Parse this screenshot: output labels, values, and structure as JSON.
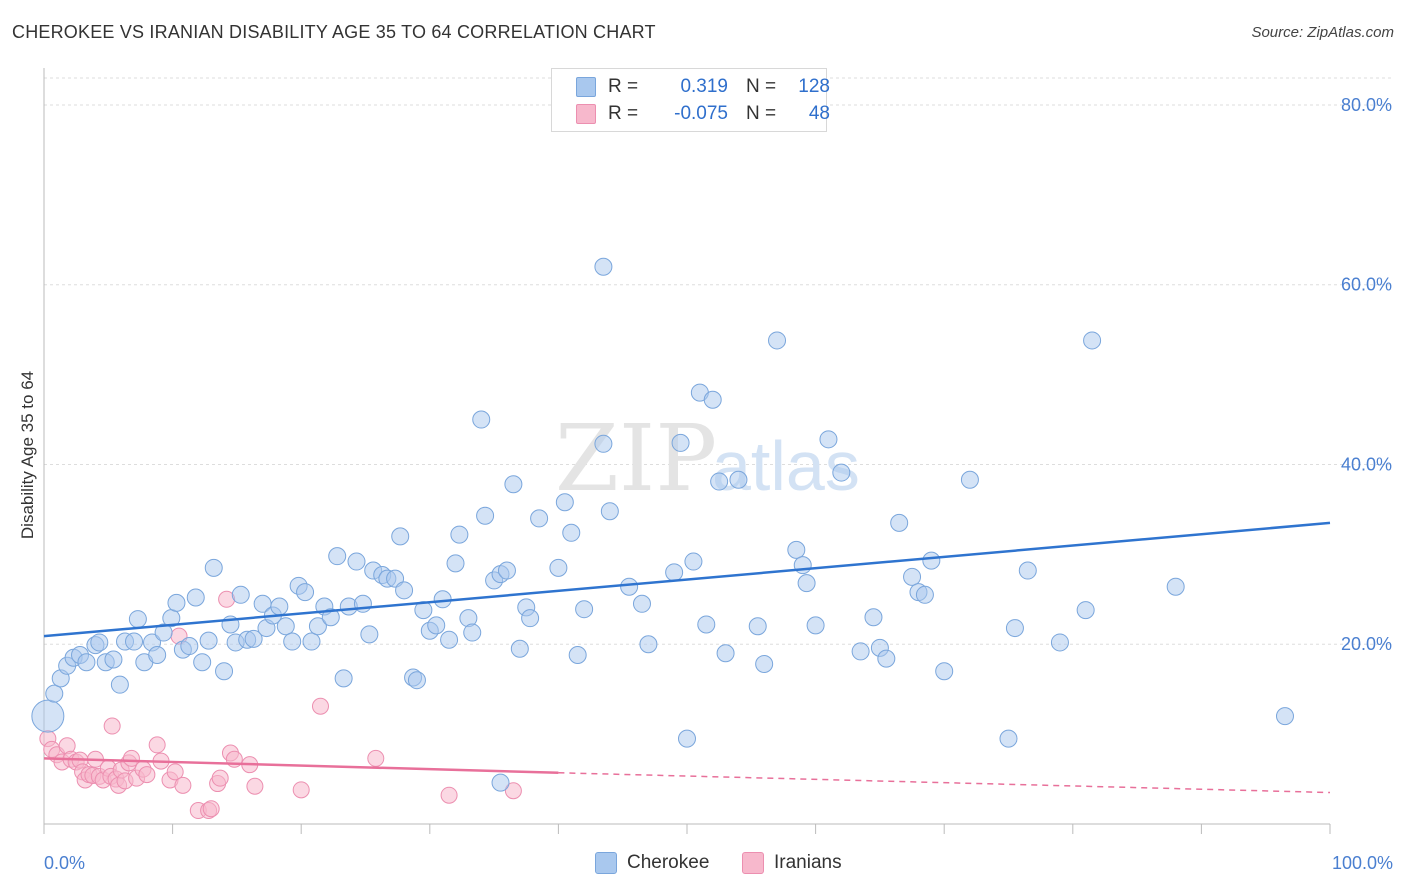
{
  "title": "CHEROKEE VS IRANIAN DISABILITY AGE 35 TO 64 CORRELATION CHART",
  "source": "Source: ZipAtlas.com",
  "watermark": {
    "zip": "ZIP",
    "atlas": "atlas"
  },
  "legend": {
    "series1": {
      "r_label": "R =",
      "r_value": "0.319",
      "n_label": "N =",
      "n_value": "128"
    },
    "series2": {
      "r_label": "R =",
      "r_value": "-0.075",
      "n_label": "N =",
      "n_value": "48"
    }
  },
  "bottom_legend": {
    "series1": "Cherokee",
    "series2": "Iranians"
  },
  "colors": {
    "cherokee_fill": "#a9c8ee",
    "cherokee_stroke": "#7aa6dc",
    "cherokee_line": "#2f74cf",
    "iranians_fill": "#f7b8cc",
    "iranians_stroke": "#ec8fb0",
    "iranians_line": "#e8709a",
    "grid": "#dddddd",
    "tick_text": "#4a7fd0"
  },
  "chart_data": {
    "type": "scatter",
    "title": "CHEROKEE VS IRANIAN DISABILITY AGE 35 TO 64 CORRELATION CHART",
    "xlabel": "",
    "ylabel": "Disability Age 35 to 64",
    "xlim": [
      0,
      100
    ],
    "ylim": [
      0,
      83
    ],
    "x_tick_labels": [
      "0.0%",
      "100.0%"
    ],
    "y_ticks": [
      20,
      40,
      60,
      80
    ],
    "y_tick_labels": [
      "20.0%",
      "40.0%",
      "60.0%",
      "80.0%"
    ],
    "grid": true,
    "legend_placement": "top-center",
    "series": [
      {
        "name": "Cherokee",
        "r": 0.319,
        "n": 128,
        "trend": {
          "x": [
            0,
            100
          ],
          "y": [
            20.9,
            33.5
          ],
          "style": "solid"
        },
        "points": [
          [
            0.3,
            12.0
          ],
          [
            0.8,
            14.5
          ],
          [
            1.3,
            16.2
          ],
          [
            1.8,
            17.6
          ],
          [
            2.3,
            18.5
          ],
          [
            2.8,
            18.8
          ],
          [
            3.3,
            18.0
          ],
          [
            4.0,
            19.9
          ],
          [
            4.3,
            20.2
          ],
          [
            4.8,
            18.0
          ],
          [
            5.4,
            18.3
          ],
          [
            5.9,
            15.5
          ],
          [
            6.3,
            20.3
          ],
          [
            7.0,
            20.3
          ],
          [
            7.3,
            22.8
          ],
          [
            7.8,
            18.0
          ],
          [
            8.4,
            20.2
          ],
          [
            8.8,
            18.8
          ],
          [
            9.3,
            21.3
          ],
          [
            9.9,
            22.9
          ],
          [
            10.3,
            24.6
          ],
          [
            10.8,
            19.4
          ],
          [
            11.3,
            19.8
          ],
          [
            11.8,
            25.2
          ],
          [
            12.3,
            18.0
          ],
          [
            12.8,
            20.4
          ],
          [
            13.2,
            28.5
          ],
          [
            14.0,
            17.0
          ],
          [
            14.5,
            22.2
          ],
          [
            14.9,
            20.2
          ],
          [
            15.3,
            25.5
          ],
          [
            15.8,
            20.5
          ],
          [
            16.3,
            20.6
          ],
          [
            17.0,
            24.5
          ],
          [
            17.3,
            21.8
          ],
          [
            17.8,
            23.2
          ],
          [
            18.3,
            24.2
          ],
          [
            18.8,
            22.0
          ],
          [
            19.3,
            20.3
          ],
          [
            19.8,
            26.5
          ],
          [
            20.3,
            25.8
          ],
          [
            20.8,
            20.3
          ],
          [
            21.3,
            22.0
          ],
          [
            21.8,
            24.2
          ],
          [
            22.3,
            23.0
          ],
          [
            22.8,
            29.8
          ],
          [
            23.3,
            16.2
          ],
          [
            23.7,
            24.2
          ],
          [
            24.3,
            29.2
          ],
          [
            24.8,
            24.5
          ],
          [
            25.3,
            21.1
          ],
          [
            25.6,
            28.2
          ],
          [
            26.3,
            27.7
          ],
          [
            26.7,
            27.3
          ],
          [
            27.3,
            27.3
          ],
          [
            27.7,
            32.0
          ],
          [
            28.0,
            26.0
          ],
          [
            28.7,
            16.3
          ],
          [
            29.0,
            16.0
          ],
          [
            29.5,
            23.8
          ],
          [
            30.0,
            21.5
          ],
          [
            30.5,
            22.1
          ],
          [
            31.0,
            25.0
          ],
          [
            31.5,
            20.5
          ],
          [
            32.0,
            29.0
          ],
          [
            32.3,
            32.2
          ],
          [
            33.0,
            22.9
          ],
          [
            33.3,
            21.3
          ],
          [
            34.0,
            45.0
          ],
          [
            34.3,
            34.3
          ],
          [
            35.0,
            27.1
          ],
          [
            35.5,
            27.8
          ],
          [
            36.0,
            28.2
          ],
          [
            36.5,
            37.8
          ],
          [
            37.0,
            19.5
          ],
          [
            37.5,
            24.1
          ],
          [
            37.8,
            22.9
          ],
          [
            38.5,
            34.0
          ],
          [
            40.0,
            28.5
          ],
          [
            40.5,
            35.8
          ],
          [
            41.0,
            32.4
          ],
          [
            41.5,
            18.8
          ],
          [
            42.0,
            23.9
          ],
          [
            43.5,
            42.3
          ],
          [
            44.0,
            34.8
          ],
          [
            45.5,
            26.4
          ],
          [
            46.5,
            24.5
          ],
          [
            47.0,
            20.0
          ],
          [
            49.0,
            28.0
          ],
          [
            49.5,
            42.4
          ],
          [
            50.0,
            9.5
          ],
          [
            50.5,
            29.2
          ],
          [
            51.0,
            48.0
          ],
          [
            51.5,
            22.2
          ],
          [
            52.0,
            47.2
          ],
          [
            52.5,
            38.1
          ],
          [
            53.0,
            19.0
          ],
          [
            54.0,
            38.3
          ],
          [
            55.5,
            22.0
          ],
          [
            56.0,
            17.8
          ],
          [
            57.0,
            53.8
          ],
          [
            58.5,
            30.5
          ],
          [
            59.0,
            28.8
          ],
          [
            59.3,
            26.8
          ],
          [
            60.0,
            22.1
          ],
          [
            61.0,
            42.8
          ],
          [
            62.0,
            39.1
          ],
          [
            63.5,
            19.2
          ],
          [
            64.5,
            23.0
          ],
          [
            65.0,
            19.6
          ],
          [
            65.5,
            18.4
          ],
          [
            66.5,
            33.5
          ],
          [
            67.5,
            27.5
          ],
          [
            68.0,
            25.8
          ],
          [
            68.5,
            25.5
          ],
          [
            69.0,
            29.3
          ],
          [
            70.0,
            17.0
          ],
          [
            72.0,
            38.3
          ],
          [
            75.0,
            9.5
          ],
          [
            75.5,
            21.8
          ],
          [
            76.5,
            28.2
          ],
          [
            79.0,
            20.2
          ],
          [
            81.0,
            23.8
          ],
          [
            81.5,
            53.8
          ],
          [
            88.0,
            26.4
          ],
          [
            96.5,
            12.0
          ],
          [
            43.5,
            62.0
          ],
          [
            35.5,
            4.6
          ]
        ]
      },
      {
        "name": "Iranians",
        "r": -0.075,
        "n": 48,
        "trend": {
          "x": [
            0,
            40,
            100
          ],
          "y": [
            7.3,
            5.7,
            3.5
          ],
          "solid_until": 40
        },
        "points": [
          [
            0.3,
            9.5
          ],
          [
            0.6,
            8.3
          ],
          [
            1.0,
            7.7
          ],
          [
            1.4,
            6.9
          ],
          [
            1.8,
            8.7
          ],
          [
            2.1,
            7.2
          ],
          [
            2.5,
            6.9
          ],
          [
            2.8,
            7.1
          ],
          [
            3.0,
            5.8
          ],
          [
            3.2,
            4.9
          ],
          [
            3.5,
            5.5
          ],
          [
            3.8,
            5.4
          ],
          [
            4.0,
            7.2
          ],
          [
            4.3,
            5.3
          ],
          [
            4.6,
            4.9
          ],
          [
            5.0,
            6.2
          ],
          [
            5.2,
            5.3
          ],
          [
            5.6,
            5.0
          ],
          [
            5.3,
            10.9
          ],
          [
            5.8,
            4.3
          ],
          [
            6.0,
            6.0
          ],
          [
            6.3,
            4.8
          ],
          [
            6.6,
            6.8
          ],
          [
            6.8,
            7.3
          ],
          [
            7.2,
            5.1
          ],
          [
            7.7,
            6.1
          ],
          [
            8.0,
            5.5
          ],
          [
            8.8,
            8.8
          ],
          [
            9.1,
            7.0
          ],
          [
            9.8,
            4.9
          ],
          [
            10.2,
            5.8
          ],
          [
            10.5,
            20.9
          ],
          [
            10.8,
            4.3
          ],
          [
            12.0,
            1.5
          ],
          [
            12.8,
            1.5
          ],
          [
            13.5,
            4.5
          ],
          [
            13.7,
            5.1
          ],
          [
            14.2,
            25.0
          ],
          [
            14.5,
            7.9
          ],
          [
            14.8,
            7.2
          ],
          [
            16.0,
            6.6
          ],
          [
            16.4,
            4.2
          ],
          [
            20.0,
            3.8
          ],
          [
            21.5,
            13.1
          ],
          [
            25.8,
            7.3
          ],
          [
            31.5,
            3.2
          ],
          [
            36.5,
            3.7
          ],
          [
            13.0,
            1.7
          ]
        ]
      }
    ]
  }
}
